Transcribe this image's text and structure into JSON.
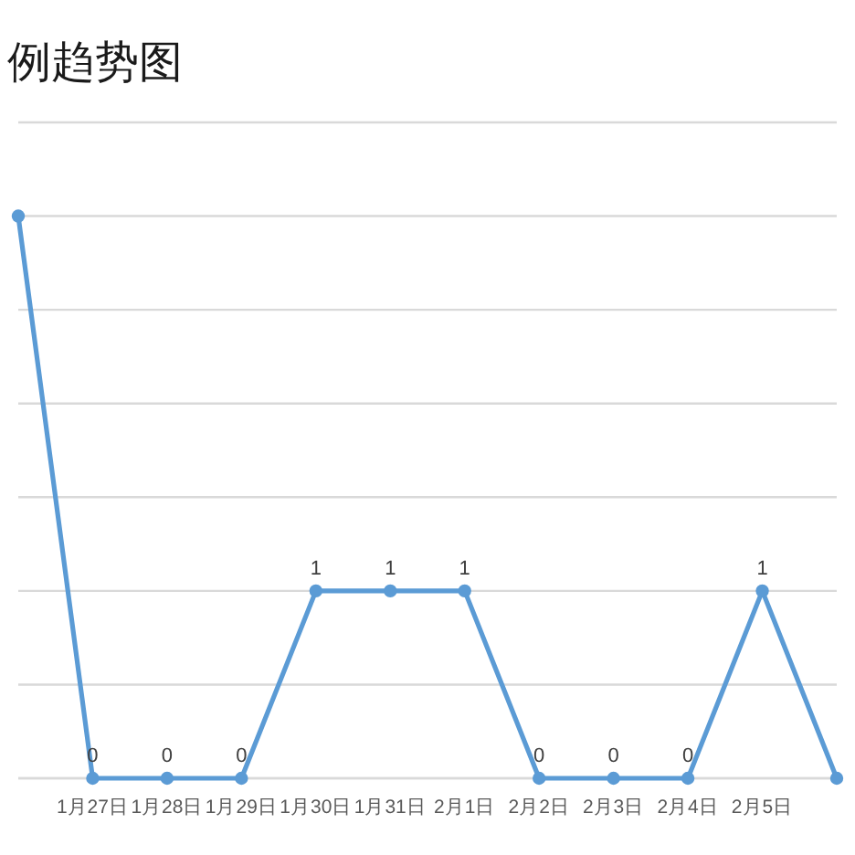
{
  "chart_data": {
    "type": "line",
    "title": "例趋势图",
    "categories": [
      null,
      "1月27日",
      "1月28日",
      "1月29日",
      "1月30日",
      "1月31日",
      "2月1日",
      "2月2日",
      "2月3日",
      "2月4日",
      "2月5日",
      null
    ],
    "series": [
      {
        "color": "#5b9bd5",
        "values": [
          3,
          0,
          0,
          0,
          1,
          1,
          1,
          0,
          0,
          0,
          1,
          0
        ],
        "value_labels": [
          null,
          "0",
          "0",
          "0",
          "1",
          "1",
          "1",
          "0",
          "0",
          "0",
          "1",
          null
        ]
      }
    ],
    "ylim": [
      0,
      3.5
    ],
    "yticks": [
      {
        "value": 0,
        "label": null
      },
      {
        "value": 0.5,
        "label": null
      },
      {
        "value": 1,
        "label": null
      },
      {
        "value": 1.5,
        "label": null
      },
      {
        "value": 2,
        "label": null
      },
      {
        "value": 2.5,
        "label": null
      },
      {
        "value": 3,
        "label": null
      },
      {
        "value": 3.5,
        "label": null
      }
    ],
    "tick_labels": "x",
    "grid": "y",
    "marker": "circle",
    "line_style": "solid"
  }
}
